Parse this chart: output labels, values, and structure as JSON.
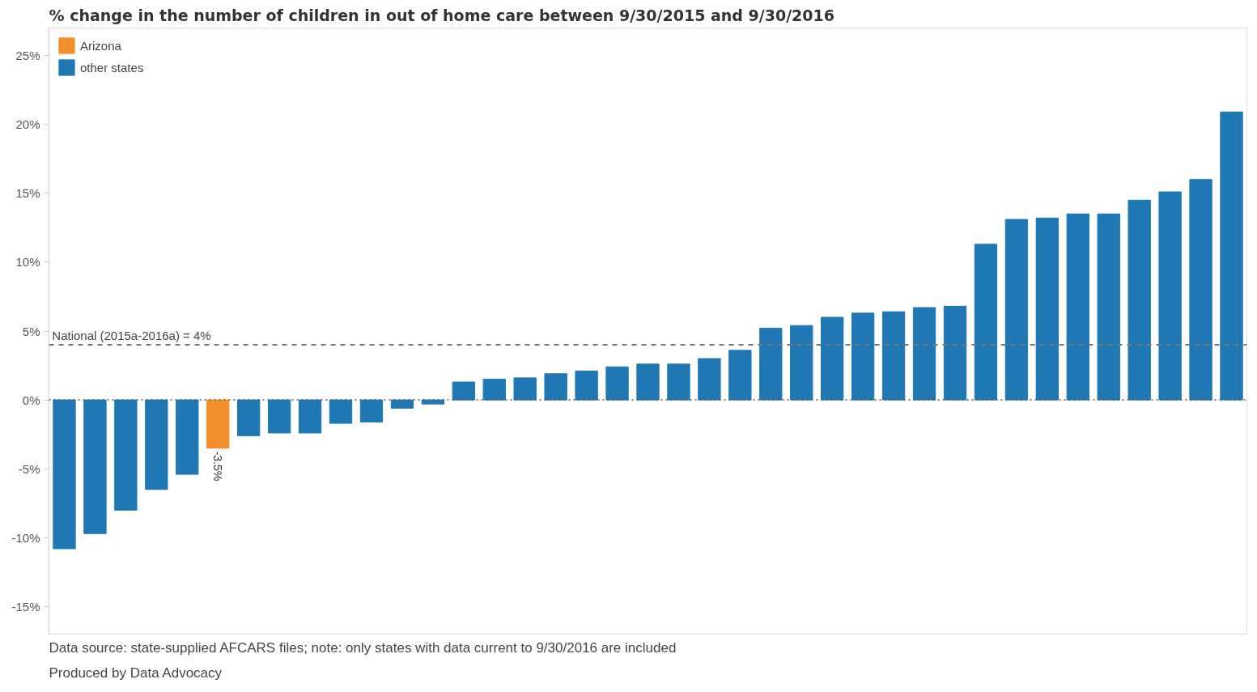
{
  "chart_data": {
    "type": "bar",
    "title": "% change in the number of children in out of home care between 9/30/2015 and 9/30/2016",
    "categories": [
      null,
      null,
      null,
      null,
      null,
      null,
      null,
      null,
      null,
      null,
      null,
      null,
      null,
      null,
      null,
      null,
      null,
      null,
      null,
      null,
      null,
      null,
      null,
      null,
      null,
      null,
      null,
      null,
      null,
      null,
      null,
      null,
      null,
      null,
      null,
      null,
      null,
      null,
      null
    ],
    "series": [
      {
        "name": "Arizona",
        "color": "#f28e2b",
        "values": [
          null,
          null,
          null,
          null,
          null,
          -3.5,
          null,
          null,
          null,
          null,
          null,
          null,
          null,
          null,
          null,
          null,
          null,
          null,
          null,
          null,
          null,
          null,
          null,
          null,
          null,
          null,
          null,
          null,
          null,
          null,
          null,
          null,
          null,
          null,
          null,
          null,
          null,
          null,
          null
        ],
        "value_labels": [
          null,
          null,
          null,
          null,
          null,
          "-3.5%",
          null,
          null,
          null,
          null,
          null,
          null,
          null,
          null,
          null,
          null,
          null,
          null,
          null,
          null,
          null,
          null,
          null,
          null,
          null,
          null,
          null,
          null,
          null,
          null,
          null,
          null,
          null,
          null,
          null,
          null,
          null,
          null,
          null
        ]
      },
      {
        "name": "other states",
        "color": "#1f77b4",
        "values": [
          -10.8,
          -9.7,
          -8.0,
          -6.5,
          -5.4,
          null,
          -2.6,
          -2.4,
          -2.4,
          -1.7,
          -1.6,
          -0.6,
          -0.3,
          1.3,
          1.5,
          1.6,
          1.9,
          2.1,
          2.4,
          2.6,
          2.6,
          3.0,
          3.6,
          5.2,
          5.4,
          6.0,
          6.3,
          6.4,
          6.7,
          6.8,
          11.3,
          13.1,
          13.2,
          13.5,
          13.5,
          14.5,
          15.1,
          16.0,
          20.9
        ]
      }
    ],
    "ylim": [
      -17,
      27
    ],
    "yticks": [
      {
        "value": -15,
        "label": "-15%"
      },
      {
        "value": -10,
        "label": "-10%"
      },
      {
        "value": -5,
        "label": "-5%"
      },
      {
        "value": 0,
        "label": "0%"
      },
      {
        "value": 5,
        "label": "5%"
      },
      {
        "value": 10,
        "label": "10%"
      },
      {
        "value": 15,
        "label": "15%"
      },
      {
        "value": 20,
        "label": "20%"
      },
      {
        "value": 25,
        "label": "25%"
      }
    ],
    "ref_lines": [
      {
        "axis": "y",
        "value": 4,
        "label": "National (2015a-2016a) = 4%",
        "line_style": "dashed",
        "color": "#777777"
      },
      {
        "axis": "y",
        "value": 0,
        "line_style": "dotted",
        "color": "#555555"
      }
    ],
    "annotations": [
      "Data source: state-supplied AFCARS files; note: only states with data current to 9/30/2016 are included",
      "Produced by Data Advocacy"
    ],
    "legend": "top left",
    "grid": false,
    "tick_labels": "y"
  }
}
